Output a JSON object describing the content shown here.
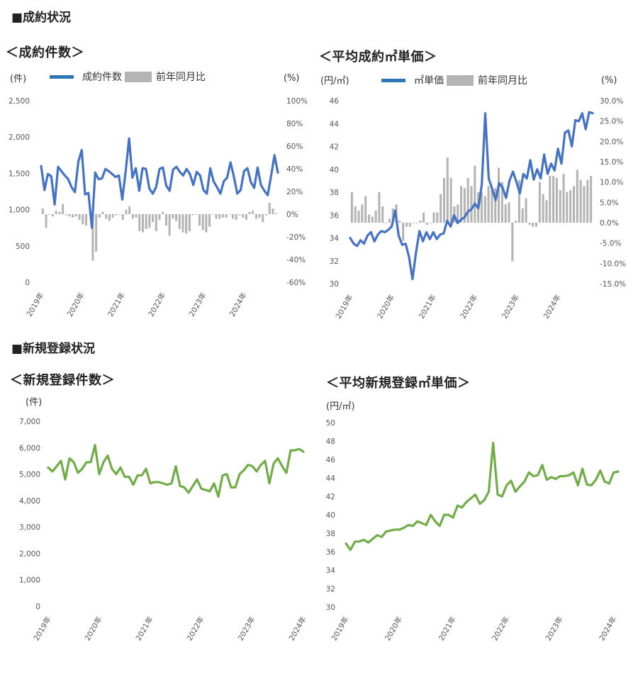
{
  "sections": {
    "contract": "■成約状況",
    "registration": "■新規登録状況"
  },
  "colors": {
    "contract_line": "#4472C4",
    "legend_line": "#2E75B6",
    "yoy_bar": "#B4B4B4",
    "registration_line": "#70AD47"
  },
  "years": [
    "2019年",
    "2020年",
    "2021年",
    "2022年",
    "2023年",
    "2024年"
  ],
  "chart_data": [
    {
      "id": "contract-count",
      "type": "bar+line",
      "title": "＜成約件数＞",
      "left_unit": "(件)",
      "right_unit": "(%)",
      "left_ticks": [
        "2,500",
        "2,000",
        "1,500",
        "1,000",
        "500",
        "0"
      ],
      "right_ticks": [
        "100%",
        "80%",
        "60%",
        "40%",
        "20%",
        "0%",
        "-20%",
        "-40%",
        "-60%"
      ],
      "ylim": [
        0,
        2500
      ],
      "y2lim": [
        -60,
        100
      ],
      "line_series": {
        "name": "成約件数",
        "values": [
          1600,
          1270,
          1490,
          1460,
          1070,
          1590,
          1530,
          1470,
          1420,
          1310,
          1240,
          1660,
          1820,
          1210,
          1230,
          750,
          1510,
          1420,
          1430,
          1560,
          1530,
          1490,
          1450,
          1470,
          1140,
          1530,
          1980,
          1440,
          1570,
          1260,
          1570,
          1560,
          1290,
          1220,
          1310,
          1560,
          1580,
          1330,
          1260,
          1550,
          1590,
          1520,
          1470,
          1560,
          1490,
          1340,
          1520,
          1470,
          1270,
          1220,
          1570,
          1390,
          1310,
          1220,
          1390,
          1440,
          1650,
          1450,
          1220,
          1270,
          1530,
          1570,
          1380,
          1300,
          1580,
          1340,
          1260,
          1200,
          1470,
          1750,
          1510
        ]
      },
      "bar_series": {
        "name": "前年同月比",
        "values": [
          5,
          -12,
          0,
          -2,
          3,
          2,
          9,
          -1,
          -2,
          -3,
          -2,
          -5,
          -9,
          -10,
          0,
          -41,
          -33,
          -3,
          2,
          -4,
          -6,
          -3,
          -1,
          0,
          -5,
          4,
          7,
          -4,
          -3,
          -15,
          -16,
          -13,
          -12,
          -7,
          -15,
          -5,
          2,
          -10,
          -19,
          -4,
          -6,
          -13,
          -16,
          -17,
          -15,
          -1,
          0,
          -10,
          -14,
          -16,
          -11,
          0,
          -4,
          -4,
          -3,
          -3,
          0,
          -4,
          -5,
          -1,
          -3,
          -5,
          2,
          3,
          -4,
          -3,
          -7,
          -1,
          10,
          5,
          1
        ]
      }
    },
    {
      "id": "avg-contract-price",
      "type": "bar+line",
      "title": "＜平均成約㎡単価＞",
      "left_unit": "(円/㎡)",
      "right_unit": "(%)",
      "left_ticks": [
        "46",
        "44",
        "42",
        "40",
        "38",
        "36",
        "34",
        "32",
        "30"
      ],
      "right_ticks": [
        "30.0%",
        "25.0%",
        "20.0%",
        "15.0%",
        "10.0%",
        "5.0%",
        "0.0%",
        "-5.0%",
        "-10.0%",
        "-15.0%"
      ],
      "ylim": [
        30,
        46
      ],
      "y2lim": [
        -15,
        30
      ],
      "line_series": {
        "name": "㎡単価",
        "values": [
          34.0,
          33.5,
          33.3,
          33.8,
          33.5,
          34.2,
          34.5,
          33.7,
          34.3,
          34.6,
          34.5,
          34.7,
          35.0,
          36.4,
          34.2,
          33.4,
          33.5,
          32.3,
          30.4,
          32.7,
          34.6,
          33.7,
          34.5,
          33.9,
          34.5,
          33.9,
          34.3,
          34.4,
          35.5,
          35.0,
          36.0,
          35.3,
          35.6,
          35.8,
          36.3,
          36.5,
          37.0,
          36.6,
          38.7,
          44.9,
          39.2,
          38.3,
          37.3,
          38.8,
          38.4,
          37.5,
          39.0,
          39.8,
          38.9,
          37.9,
          39.6,
          39.2,
          40.8,
          39.1,
          40.0,
          39.2,
          41.3,
          39.6,
          40.5,
          39.9,
          41.8,
          40.5,
          43.2,
          43.4,
          42.0,
          44.3,
          44.2,
          44.9,
          43.5,
          45.0,
          44.9
        ]
      },
      "bar_series": {
        "name": "前年同月比",
        "values": [
          7.5,
          4.0,
          3.0,
          4.5,
          6.5,
          2.0,
          1.5,
          3.0,
          7.5,
          4.0,
          0.0,
          1.0,
          3.5,
          4.5,
          0.5,
          -4.5,
          -1.0,
          -1.0,
          0.0,
          0.0,
          0.5,
          2.5,
          -0.5,
          0.0,
          2.5,
          2.5,
          7.0,
          11.0,
          16.0,
          11.0,
          4.0,
          4.5,
          9.0,
          8.5,
          11.0,
          9.0,
          14.0,
          7.5,
          7.5,
          6.5,
          9.0,
          8.5,
          8.5,
          13.5,
          10.0,
          4.5,
          5.0,
          -9.5,
          0.5,
          10.5,
          3.5,
          6.0,
          -0.5,
          -1.0,
          -1.0,
          10.0,
          7.0,
          5.5,
          11.5,
          11.5,
          11.0,
          8.0,
          12.0,
          7.5,
          8.0,
          9.0,
          13.0,
          10.5,
          9.0,
          10.5,
          11.5
        ]
      }
    },
    {
      "id": "registration-count",
      "type": "line",
      "title": "＜新規登録件数＞",
      "left_unit": "(件)",
      "left_ticks": [
        "7,000",
        "6,000",
        "5,000",
        "4,000",
        "3,000",
        "2,000",
        "1,000",
        "0"
      ],
      "ylim": [
        0,
        7000
      ],
      "line_series": {
        "name": "新規登録件数",
        "values": [
          5250,
          5100,
          5300,
          5500,
          4800,
          5600,
          5450,
          5050,
          5200,
          5450,
          5450,
          6100,
          5000,
          5450,
          5700,
          5200,
          5000,
          5250,
          4900,
          4900,
          4600,
          4950,
          4950,
          5200,
          4650,
          4700,
          4700,
          4650,
          4600,
          4650,
          5300,
          4550,
          4500,
          4300,
          4550,
          4800,
          4450,
          4400,
          4350,
          4650,
          4150,
          4950,
          5000,
          4500,
          4500,
          5000,
          5150,
          5350,
          5300,
          5100,
          5350,
          5500,
          4650,
          5400,
          5600,
          5300,
          5050,
          5900,
          5900,
          5950,
          5850
        ]
      }
    },
    {
      "id": "avg-registration-price",
      "type": "line",
      "title": "＜平均新規登録㎡単価＞",
      "left_unit": "(円/㎡)",
      "left_ticks": [
        "50",
        "48",
        "46",
        "44",
        "42",
        "40",
        "38",
        "36",
        "34",
        "32",
        "30"
      ],
      "ylim": [
        30,
        50
      ],
      "line_series": {
        "name": "平均新規登録㎡単価",
        "values": [
          36.9,
          36.2,
          37.1,
          37.1,
          37.3,
          37.0,
          37.4,
          37.8,
          37.6,
          38.2,
          38.3,
          38.4,
          38.4,
          38.6,
          38.9,
          38.8,
          39.3,
          39.1,
          38.9,
          40.0,
          39.3,
          38.8,
          40.0,
          40.0,
          39.7,
          41.0,
          40.8,
          41.4,
          41.8,
          42.2,
          41.2,
          41.6,
          42.5,
          47.8,
          42.2,
          42.0,
          43.2,
          43.7,
          42.5,
          43.1,
          43.6,
          44.6,
          44.2,
          44.3,
          45.4,
          43.8,
          44.1,
          43.9,
          44.2,
          44.2,
          44.3,
          44.6,
          43.2,
          45.0,
          43.3,
          43.2,
          43.8,
          44.8,
          43.6,
          43.4,
          44.6,
          44.7
        ]
      }
    }
  ]
}
